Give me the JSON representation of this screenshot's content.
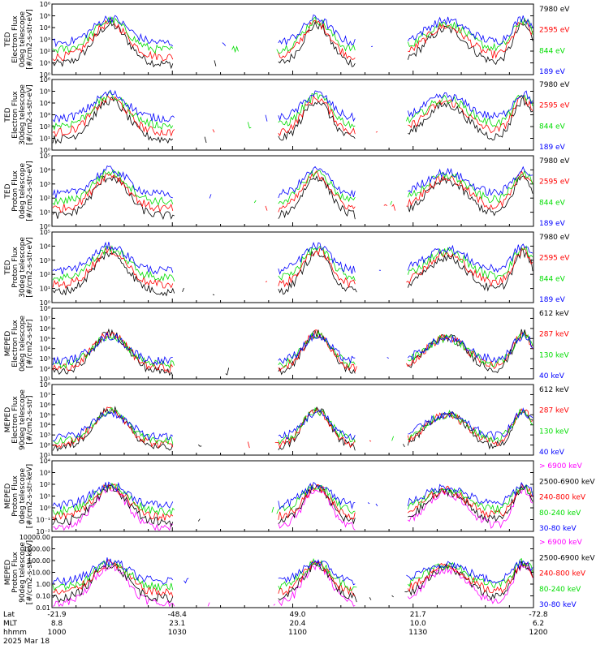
{
  "colors": {
    "black": "#000000",
    "red": "#ff0000",
    "green": "#00dd00",
    "blue": "#0000ff",
    "magenta": "#ff00ff"
  },
  "chart_data": [
    {
      "type": "line",
      "ylabel": [
        "TED",
        "Electron Flux",
        "0deg telescope",
        "[#/cm2-s-str-eV]"
      ],
      "scale": "log",
      "ylim": [
        1,
        1000000
      ],
      "yticks": [
        "10⁰",
        "10¹",
        "10²",
        "10³",
        "10⁴",
        "10⁵",
        "10⁶"
      ],
      "series": [
        {
          "name": "7980 eV",
          "color": "#000000"
        },
        {
          "name": "2595 eV",
          "color": "#ff0000"
        },
        {
          "name": "844 eV",
          "color": "#00dd00"
        },
        {
          "name": "189 eV",
          "color": "#0000ff"
        }
      ]
    },
    {
      "type": "line",
      "ylabel": [
        "TED",
        "Electron Flux",
        "30deg telescope",
        "[#/cm2-s-str-eV]"
      ],
      "scale": "log",
      "ylim": [
        1,
        1000000
      ],
      "yticks": [
        "10⁰",
        "10¹",
        "10²",
        "10³",
        "10⁴",
        "10⁵",
        "10⁶"
      ],
      "series": [
        {
          "name": "7980 eV",
          "color": "#000000"
        },
        {
          "name": "2595 eV",
          "color": "#ff0000"
        },
        {
          "name": "844 eV",
          "color": "#00dd00"
        },
        {
          "name": "189 eV",
          "color": "#0000ff"
        }
      ]
    },
    {
      "type": "line",
      "ylabel": [
        "TED",
        "Proton Flux",
        "0deg telescope",
        "[#/cm2-s-str-eV]"
      ],
      "scale": "log",
      "ylim": [
        1,
        100000
      ],
      "yticks": [
        "10⁰",
        "10¹",
        "10²",
        "10³",
        "10⁴",
        "10⁵"
      ],
      "series": [
        {
          "name": "7980 eV",
          "color": "#000000"
        },
        {
          "name": "2595 eV",
          "color": "#ff0000"
        },
        {
          "name": "844 eV",
          "color": "#00dd00"
        },
        {
          "name": "189 eV",
          "color": "#0000ff"
        }
      ]
    },
    {
      "type": "line",
      "ylabel": [
        "TED",
        "Proton Flux",
        "30deg telescope",
        "[#/cm2-s-str-eV]"
      ],
      "scale": "log",
      "ylim": [
        1,
        100000
      ],
      "yticks": [
        "10⁰",
        "10¹",
        "10²",
        "10³",
        "10⁴",
        "10⁵"
      ],
      "series": [
        {
          "name": "7980 eV",
          "color": "#000000"
        },
        {
          "name": "2595 eV",
          "color": "#ff0000"
        },
        {
          "name": "844 eV",
          "color": "#00dd00"
        },
        {
          "name": "189 eV",
          "color": "#0000ff"
        }
      ]
    },
    {
      "type": "line",
      "ylabel": [
        "MEPED",
        "Electron Flux",
        "0deg telescope",
        "[#/cm2-s-str]"
      ],
      "scale": "log",
      "ylim": [
        10,
        100000000
      ],
      "yticks": [
        "10¹",
        "10²",
        "10³",
        "10⁴",
        "10⁵",
        "10⁶",
        "10⁷",
        "10⁸"
      ],
      "series": [
        {
          "name": "612 keV",
          "color": "#000000"
        },
        {
          "name": "287 keV",
          "color": "#ff0000"
        },
        {
          "name": "130 keV",
          "color": "#00dd00"
        },
        {
          "name": "40 keV",
          "color": "#0000ff"
        }
      ]
    },
    {
      "type": "line",
      "ylabel": [
        "MEPED",
        "Electron Flux",
        "90deg telescope",
        "[#/cm2-s-str]"
      ],
      "scale": "log",
      "ylim": [
        10,
        100000000
      ],
      "yticks": [
        "10¹",
        "10²",
        "10³",
        "10⁴",
        "10⁵",
        "10⁶",
        "10⁷",
        "10⁸"
      ],
      "series": [
        {
          "name": "612 keV",
          "color": "#000000"
        },
        {
          "name": "287 keV",
          "color": "#ff0000"
        },
        {
          "name": "130 keV",
          "color": "#00dd00"
        },
        {
          "name": "40 keV",
          "color": "#0000ff"
        }
      ]
    },
    {
      "type": "line",
      "ylabel": [
        "MEPED",
        "Proton Flux",
        "0deg telescope",
        "[#/cm2-s-str-keV]"
      ],
      "scale": "log",
      "ylim": [
        0.01,
        10000
      ],
      "yticks": [
        "10⁻²",
        "10⁻¹",
        "10⁰",
        "10¹",
        "10²",
        "10³",
        "10⁴"
      ],
      "series": [
        {
          "name": "> 6900 keV",
          "color": "#ff00ff"
        },
        {
          "name": "2500-6900 keV",
          "color": "#000000"
        },
        {
          "name": "240-800 keV",
          "color": "#ff0000"
        },
        {
          "name": "80-240 keV",
          "color": "#00dd00"
        },
        {
          "name": "30-80 keV",
          "color": "#0000ff"
        }
      ]
    },
    {
      "type": "line",
      "ylabel": [
        "MEPED",
        "Proton Flux",
        "90deg telescope",
        "[#/cm2-s-str-keV]"
      ],
      "scale": "log",
      "ylim": [
        0.01,
        10000
      ],
      "yticks": [
        "0.01",
        "0.10",
        "1.00",
        "10.00",
        "100.00",
        "1000.00",
        "10000.00"
      ],
      "series": [
        {
          "name": "> 6900 keV",
          "color": "#ff00ff"
        },
        {
          "name": "2500-6900 keV",
          "color": "#000000"
        },
        {
          "name": "240-800 keV",
          "color": "#ff0000"
        },
        {
          "name": "80-240 keV",
          "color": "#00dd00"
        },
        {
          "name": "30-80 keV",
          "color": "#0000ff"
        }
      ]
    }
  ],
  "xaxis": {
    "row_labels": [
      "Lat",
      "MLT",
      "hhmm"
    ],
    "date": "2025 Mar 18",
    "columns": [
      {
        "lat": "-21.9",
        "mlt": "8.8",
        "hhmm": "1000"
      },
      {
        "lat": "-48.4",
        "mlt": "23.1",
        "hhmm": "1030"
      },
      {
        "lat": "49.0",
        "mlt": "20.4",
        "hhmm": "1100"
      },
      {
        "lat": "21.7",
        "mlt": "10.0",
        "hhmm": "1130"
      },
      {
        "lat": "-72.8",
        "mlt": "6.2",
        "hhmm": "1200"
      }
    ]
  }
}
